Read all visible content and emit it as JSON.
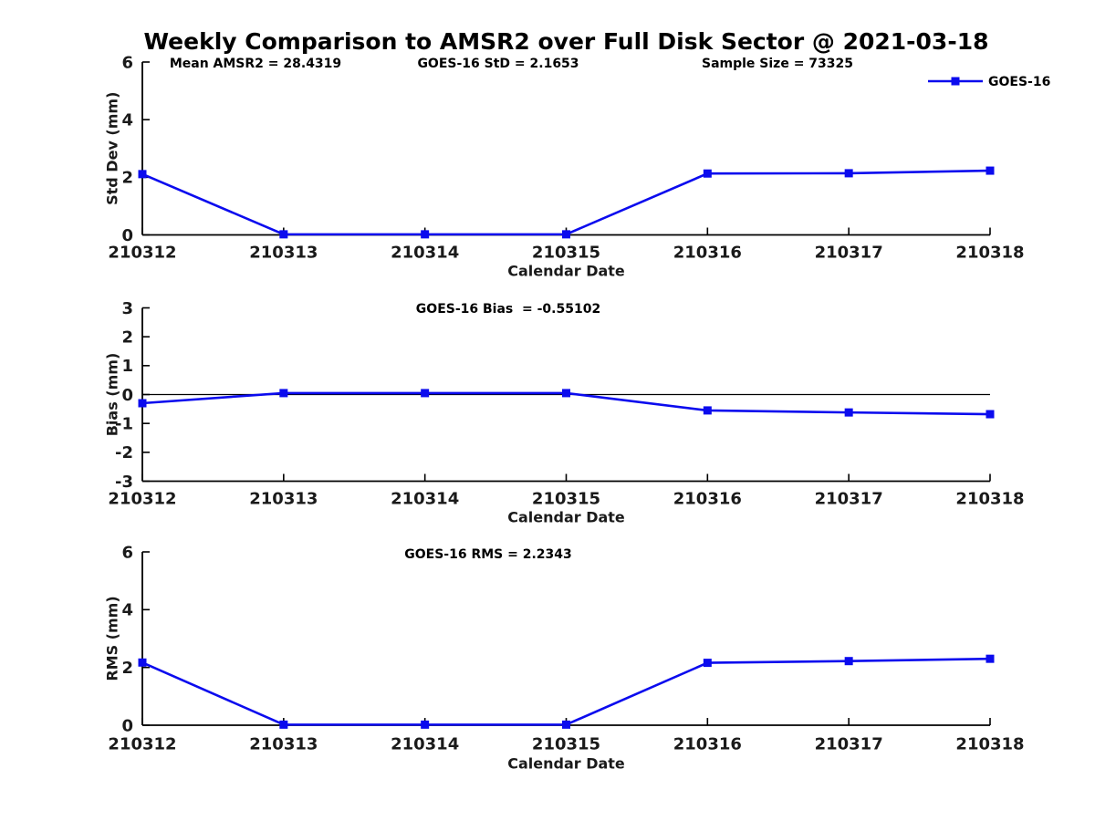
{
  "title": "Weekly Comparison to AMSR2 over Full Disk Sector @ 2021-03-18",
  "colors": {
    "line": "#0b0bee",
    "axis": "#000000",
    "tick_text": "#1a1a1a",
    "annotation_text": "#000000",
    "background": "#ffffff"
  },
  "legend": {
    "label": "GOES-16"
  },
  "chart_data": [
    {
      "type": "line",
      "id": "std-dev",
      "annotations": [
        "Mean AMSR2 = 28.4319",
        "GOES-16 StD = 2.1653",
        "Sample Size = 73325"
      ],
      "categories": [
        "210312",
        "210313",
        "210314",
        "210315",
        "210316",
        "210317",
        "210318"
      ],
      "series": [
        {
          "name": "GOES-16",
          "values": [
            2.11,
            0.02,
            0.02,
            0.02,
            2.13,
            2.14,
            2.23
          ]
        }
      ],
      "xlabel": "Calendar Date",
      "ylabel": "Std Dev (mm)",
      "ylim": [
        0,
        6
      ],
      "yticks": [
        0,
        2,
        4,
        6
      ],
      "zero_line": false,
      "show_legend": true,
      "grid": false,
      "legend_position": "top-right-outside"
    },
    {
      "type": "line",
      "id": "bias",
      "annotations": [
        "GOES-16 Bias  = -0.55102"
      ],
      "categories": [
        "210312",
        "210313",
        "210314",
        "210315",
        "210316",
        "210317",
        "210318"
      ],
      "series": [
        {
          "name": "GOES-16",
          "values": [
            -0.3,
            0.05,
            0.05,
            0.05,
            -0.55,
            -0.62,
            -0.68
          ]
        }
      ],
      "xlabel": "Calendar Date",
      "ylabel": "Bias (mm)",
      "ylim": [
        -3,
        3
      ],
      "yticks": [
        -3,
        -2,
        -1,
        0,
        1,
        2,
        3
      ],
      "zero_line": true,
      "show_legend": false,
      "grid": false
    },
    {
      "type": "line",
      "id": "rms",
      "annotations": [
        "GOES-16 RMS = 2.2343"
      ],
      "categories": [
        "210312",
        "210313",
        "210314",
        "210315",
        "210316",
        "210317",
        "210318"
      ],
      "series": [
        {
          "name": "GOES-16",
          "values": [
            2.17,
            0.02,
            0.02,
            0.02,
            2.16,
            2.22,
            2.3
          ]
        }
      ],
      "xlabel": "Calendar Date",
      "ylabel": "RMS (mm)",
      "ylim": [
        0,
        6
      ],
      "yticks": [
        0,
        2,
        4,
        6
      ],
      "zero_line": false,
      "show_legend": false,
      "grid": false
    }
  ]
}
